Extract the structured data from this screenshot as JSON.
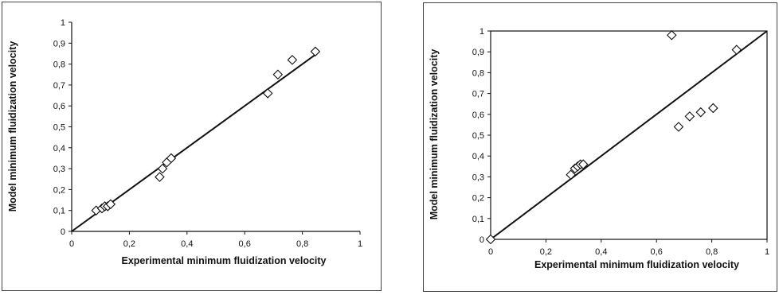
{
  "chart_data": [
    {
      "type": "scatter",
      "xlabel": "Experimental minimum fluidization velocity",
      "ylabel": "Model minimum fluidization velocity",
      "xlim": [
        0,
        1
      ],
      "ylim": [
        0,
        1
      ],
      "x_ticks": [
        "0",
        "0,2",
        "0,4",
        "0,6",
        "0,8",
        "1"
      ],
      "y_ticks": [
        "0",
        "0,1",
        "0,2",
        "0,3",
        "0,4",
        "0,5",
        "0,6",
        "0,7",
        "0,8",
        "0,9",
        "1"
      ],
      "grid": false,
      "marker": "diamond",
      "points": [
        {
          "x": 0.085,
          "y": 0.1
        },
        {
          "x": 0.105,
          "y": 0.11
        },
        {
          "x": 0.115,
          "y": 0.12
        },
        {
          "x": 0.125,
          "y": 0.12
        },
        {
          "x": 0.135,
          "y": 0.13
        },
        {
          "x": 0.305,
          "y": 0.26
        },
        {
          "x": 0.315,
          "y": 0.3
        },
        {
          "x": 0.33,
          "y": 0.33
        },
        {
          "x": 0.345,
          "y": 0.35
        },
        {
          "x": 0.68,
          "y": 0.66
        },
        {
          "x": 0.715,
          "y": 0.75
        },
        {
          "x": 0.765,
          "y": 0.82
        },
        {
          "x": 0.845,
          "y": 0.86
        }
      ],
      "fit_line": {
        "x": [
          0,
          0.85
        ],
        "y": [
          0,
          0.85
        ]
      }
    },
    {
      "type": "scatter",
      "xlabel": "Experimental minimum fluidization velocity",
      "ylabel": "Model minimum fluidization velocity",
      "xlim": [
        0,
        1
      ],
      "ylim": [
        0,
        1
      ],
      "x_ticks": [
        "0",
        "0,2",
        "0,4",
        "0,6",
        "0,8",
        "1"
      ],
      "y_ticks": [
        "0",
        "0,1",
        "0,2",
        "0,3",
        "0,4",
        "0,5",
        "0,6",
        "0,7",
        "0,8",
        "0,9",
        "1"
      ],
      "grid": false,
      "marker": "diamond",
      "points": [
        {
          "x": 0.0,
          "y": 0.0
        },
        {
          "x": 0.29,
          "y": 0.31
        },
        {
          "x": 0.305,
          "y": 0.34
        },
        {
          "x": 0.315,
          "y": 0.35
        },
        {
          "x": 0.325,
          "y": 0.36
        },
        {
          "x": 0.335,
          "y": 0.36
        },
        {
          "x": 0.655,
          "y": 0.98
        },
        {
          "x": 0.68,
          "y": 0.54
        },
        {
          "x": 0.72,
          "y": 0.59
        },
        {
          "x": 0.76,
          "y": 0.61
        },
        {
          "x": 0.805,
          "y": 0.63
        },
        {
          "x": 0.89,
          "y": 0.91
        }
      ],
      "fit_line": {
        "x": [
          0,
          1
        ],
        "y": [
          0,
          1
        ]
      }
    }
  ]
}
